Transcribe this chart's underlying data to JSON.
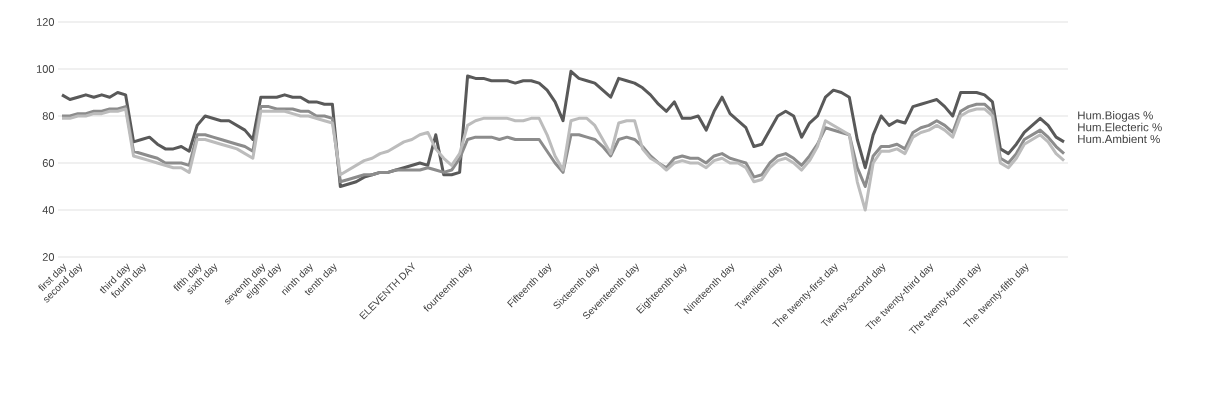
{
  "chart_data": {
    "type": "line",
    "categories": [
      "first day",
      null,
      "second day",
      null,
      null,
      null,
      null,
      null,
      "third day",
      null,
      "fourth day",
      null,
      null,
      null,
      null,
      null,
      null,
      "fifth day",
      null,
      "sixth day",
      null,
      null,
      null,
      null,
      null,
      "seventh day",
      null,
      "eighth day",
      null,
      null,
      null,
      "ninth day",
      null,
      null,
      "tenth day",
      null,
      null,
      null,
      null,
      null,
      null,
      null,
      null,
      null,
      "ELEVENTH DAY",
      null,
      null,
      null,
      null,
      null,
      null,
      "fourteenth day",
      null,
      null,
      null,
      null,
      null,
      null,
      null,
      null,
      null,
      "Fifteenth day",
      null,
      null,
      null,
      null,
      null,
      "Sixteenth day",
      null,
      null,
      null,
      null,
      "Seventeenth day",
      null,
      null,
      null,
      null,
      null,
      "Eighteenth day",
      null,
      null,
      null,
      null,
      null,
      "Nineteenth day",
      null,
      null,
      null,
      null,
      null,
      "Twentieth day",
      null,
      null,
      null,
      null,
      null,
      null,
      "The twenty-first day",
      null,
      null,
      null,
      null,
      null,
      "Twenty-second day",
      null,
      null,
      null,
      null,
      null,
      "The twenty-third day",
      null,
      null,
      null,
      null,
      null,
      "The twenty-fourth day",
      null,
      null,
      null,
      null,
      null,
      "The twenty-fifth day",
      null,
      null,
      null,
      null,
      null
    ],
    "series": [
      {
        "name": "Hum.Biogas %",
        "color": "#595959",
        "values": [
          89,
          87,
          88,
          89,
          88,
          89,
          88,
          90,
          89,
          69,
          70,
          71,
          68,
          66,
          66,
          67,
          65,
          76,
          80,
          79,
          78,
          78,
          76,
          74,
          70,
          88,
          88,
          88,
          89,
          88,
          88,
          86,
          86,
          85,
          85,
          50,
          51,
          52,
          54,
          55,
          56,
          56,
          57,
          58,
          59,
          60,
          59,
          72,
          55,
          55,
          56,
          97,
          96,
          96,
          95,
          95,
          95,
          94,
          95,
          95,
          94,
          91,
          86,
          78,
          99,
          96,
          95,
          94,
          91,
          88,
          96,
          95,
          94,
          92,
          89,
          85,
          82,
          86,
          79,
          79,
          80,
          74,
          82,
          88,
          81,
          78,
          75,
          67,
          68,
          74,
          80,
          82,
          80,
          71,
          77,
          80,
          88,
          91,
          90,
          88,
          70,
          58,
          72,
          80,
          76,
          78,
          77,
          84,
          85,
          86,
          87,
          84,
          80,
          90,
          90,
          90,
          89,
          86,
          66,
          64,
          68,
          73,
          76,
          79,
          76,
          71,
          69
        ]
      },
      {
        "name": "Hum.Electeric %",
        "color": "#8c8c8c",
        "values": [
          80,
          80,
          81,
          81,
          82,
          82,
          83,
          83,
          84,
          65,
          64,
          63,
          62,
          60,
          60,
          60,
          59,
          72,
          72,
          71,
          70,
          69,
          68,
          67,
          65,
          84,
          84,
          83,
          83,
          83,
          82,
          82,
          80,
          80,
          79,
          52,
          53,
          54,
          55,
          55,
          56,
          56,
          57,
          57,
          57,
          57,
          58,
          57,
          56,
          57,
          62,
          70,
          71,
          71,
          71,
          70,
          71,
          70,
          70,
          70,
          70,
          65,
          60,
          56,
          72,
          72,
          71,
          70,
          67,
          63,
          70,
          71,
          70,
          67,
          63,
          60,
          58,
          62,
          63,
          62,
          62,
          60,
          63,
          64,
          62,
          61,
          60,
          54,
          55,
          60,
          63,
          64,
          62,
          59,
          63,
          68,
          75,
          74,
          73,
          72,
          58,
          50,
          63,
          67,
          67,
          68,
          66,
          73,
          75,
          76,
          78,
          76,
          73,
          82,
          84,
          85,
          85,
          82,
          62,
          60,
          64,
          70,
          72,
          74,
          71,
          67,
          64
        ]
      },
      {
        "name": "Hum.Ambient %",
        "color": "#bcbcbc",
        "values": [
          79,
          79,
          80,
          80,
          81,
          81,
          82,
          82,
          83,
          63,
          62,
          61,
          60,
          59,
          58,
          58,
          56,
          70,
          70,
          69,
          68,
          67,
          66,
          64,
          62,
          82,
          82,
          82,
          82,
          81,
          80,
          80,
          79,
          78,
          77,
          55,
          57,
          59,
          61,
          62,
          64,
          65,
          67,
          69,
          70,
          72,
          73,
          66,
          62,
          59,
          64,
          76,
          78,
          79,
          79,
          79,
          79,
          78,
          78,
          79,
          79,
          72,
          63,
          57,
          78,
          79,
          79,
          76,
          70,
          64,
          77,
          78,
          78,
          66,
          62,
          60,
          57,
          60,
          61,
          60,
          60,
          58,
          61,
          62,
          60,
          60,
          58,
          52,
          53,
          58,
          61,
          62,
          60,
          57,
          61,
          67,
          78,
          76,
          74,
          72,
          52,
          40,
          60,
          65,
          65,
          66,
          64,
          71,
          73,
          74,
          76,
          74,
          71,
          80,
          82,
          83,
          83,
          80,
          60,
          58,
          62,
          68,
          70,
          72,
          69,
          64,
          61
        ]
      }
    ],
    "ylim": [
      20,
      120
    ],
    "yticks": [
      20,
      40,
      60,
      80,
      100,
      120
    ],
    "grid": "y",
    "legend": "right",
    "marker": "none",
    "line_style": "solid"
  }
}
